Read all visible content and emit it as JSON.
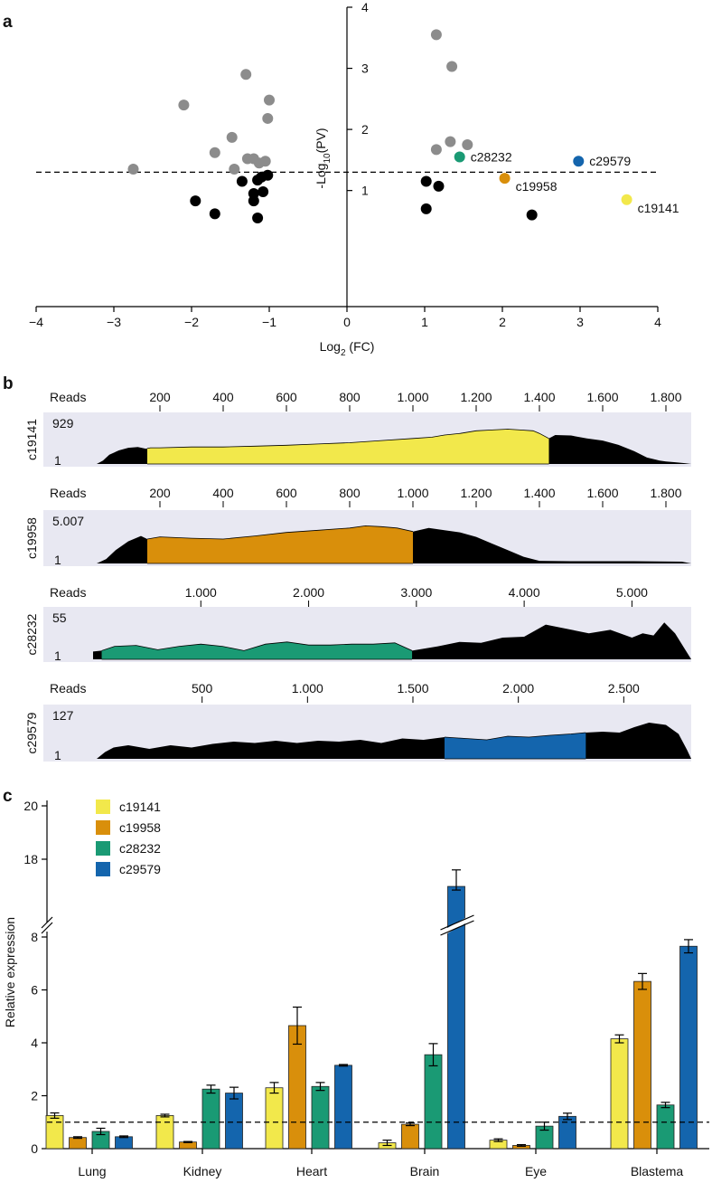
{
  "panels": {
    "a": "a",
    "b": "b",
    "c": "c"
  },
  "chart_data": [
    {
      "type": "scatter",
      "panel": "a",
      "xlabel_main": "Log",
      "xlabel_sub": "2",
      "xlabel_tail": " (FC)",
      "ylabel_main": "-Log",
      "ylabel_sub": "10",
      "ylabel_tail": "(PV)",
      "xlim": [
        -4,
        4
      ],
      "ylim": [
        -0.9,
        4
      ],
      "xticks": [
        -4,
        -3,
        -2,
        -1,
        0,
        1,
        2,
        3,
        4
      ],
      "xtick_labels": [
        "−4",
        "−3",
        "−2",
        "−1",
        "0",
        "1",
        "2",
        "3",
        "4"
      ],
      "yticks": [
        1,
        2,
        3,
        4
      ],
      "ytick_labels": [
        "1",
        "2",
        "3",
        "4"
      ],
      "threshold": 1.3,
      "colors": {
        "grey": "#8c8c8c",
        "black": "#000000",
        "c19141": "#f2e84b",
        "c19958": "#d98f0b",
        "c28232": "#1a9a74",
        "c29579": "#1465ad"
      },
      "grey_points": [
        [
          -2.75,
          1.35
        ],
        [
          -2.1,
          2.4
        ],
        [
          -1.7,
          1.62
        ],
        [
          -1.48,
          1.87
        ],
        [
          -1.3,
          2.9
        ],
        [
          -1.28,
          1.52
        ],
        [
          -1.2,
          1.52
        ],
        [
          -1.13,
          1.45
        ],
        [
          -1.05,
          1.48
        ],
        [
          -1.02,
          2.18
        ],
        [
          -1.0,
          2.48
        ],
        [
          -1.45,
          1.35
        ],
        [
          1.15,
          3.55
        ],
        [
          1.35,
          3.03
        ],
        [
          1.15,
          1.67
        ],
        [
          1.33,
          1.8
        ],
        [
          1.55,
          1.75
        ]
      ],
      "black_points": [
        [
          -1.95,
          0.83
        ],
        [
          -1.7,
          0.62
        ],
        [
          -1.35,
          1.15
        ],
        [
          -1.2,
          0.95
        ],
        [
          -1.2,
          0.83
        ],
        [
          -1.15,
          0.55
        ],
        [
          -1.15,
          1.17
        ],
        [
          -1.1,
          1.22
        ],
        [
          -1.08,
          0.98
        ],
        [
          -1.02,
          1.25
        ],
        [
          1.02,
          0.7
        ],
        [
          1.02,
          1.15
        ],
        [
          1.18,
          1.07
        ],
        [
          2.38,
          0.6
        ]
      ],
      "highlight_points": [
        {
          "name": "c28232",
          "x": 1.45,
          "y": 1.55,
          "color": "#1a9a74",
          "label": "c28232"
        },
        {
          "name": "c19958",
          "x": 2.03,
          "y": 1.2,
          "color": "#d98f0b",
          "label": "c19958"
        },
        {
          "name": "c29579",
          "x": 2.98,
          "y": 1.48,
          "color": "#1465ad",
          "label": "c29579"
        },
        {
          "name": "c19141",
          "x": 3.6,
          "y": 0.85,
          "color": "#f2e84b",
          "label": "c19141"
        }
      ]
    },
    {
      "type": "area",
      "panel": "b",
      "reads_label": "Reads",
      "tracks": [
        {
          "name": "c19141",
          "ymax_label": "929",
          "ymin_label": "1",
          "xmin": 0,
          "xmax": 1880,
          "ticks": [
            200,
            400,
            600,
            800,
            1000,
            1200,
            1400,
            1600,
            1800
          ],
          "tick_labels": [
            "200",
            "400",
            "600",
            "800",
            "1.000",
            "1.200",
            "1.400",
            "1.600",
            "1.800"
          ],
          "highlight": [
            160,
            1430
          ],
          "color": "#f2e84b",
          "profile_x": [
            0,
            20,
            40,
            70,
            100,
            130,
            155,
            170,
            200,
            300,
            400,
            500,
            600,
            700,
            800,
            900,
            1000,
            1060,
            1100,
            1150,
            1200,
            1250,
            1300,
            1340,
            1380,
            1400,
            1430,
            1450,
            1500,
            1550,
            1600,
            1650,
            1700,
            1740,
            1780,
            1800,
            1830,
            1860,
            1880
          ],
          "profile_y": [
            0,
            0.08,
            0.22,
            0.32,
            0.38,
            0.4,
            0.36,
            0.38,
            0.38,
            0.4,
            0.4,
            0.42,
            0.44,
            0.47,
            0.5,
            0.55,
            0.6,
            0.63,
            0.68,
            0.72,
            0.78,
            0.8,
            0.82,
            0.8,
            0.78,
            0.72,
            0.6,
            0.68,
            0.67,
            0.6,
            0.55,
            0.45,
            0.3,
            0.15,
            0.08,
            0.06,
            0.04,
            0.02,
            0
          ]
        },
        {
          "name": "c19958",
          "ymax_label": "5.007",
          "ymin_label": "1",
          "xmin": 0,
          "xmax": 1880,
          "ticks": [
            200,
            400,
            600,
            800,
            1000,
            1200,
            1400,
            1600,
            1800
          ],
          "tick_labels": [
            "200",
            "400",
            "600",
            "800",
            "1.000",
            "1.200",
            "1.400",
            "1.600",
            "1.800"
          ],
          "highlight": [
            160,
            1000
          ],
          "color": "#d98f0b",
          "profile_x": [
            0,
            30,
            60,
            100,
            140,
            160,
            200,
            300,
            400,
            500,
            600,
            700,
            800,
            850,
            900,
            950,
            1000,
            1050,
            1100,
            1150,
            1200,
            1250,
            1300,
            1350,
            1400,
            1500,
            1700,
            1850,
            1880
          ],
          "profile_y": [
            0,
            0.1,
            0.3,
            0.5,
            0.62,
            0.55,
            0.6,
            0.57,
            0.55,
            0.62,
            0.7,
            0.75,
            0.8,
            0.85,
            0.83,
            0.8,
            0.72,
            0.8,
            0.75,
            0.7,
            0.6,
            0.45,
            0.3,
            0.15,
            0.06,
            0.05,
            0.05,
            0.04,
            0
          ]
        },
        {
          "name": "c28232",
          "ymax_label": "55",
          "ymin_label": "1",
          "xmin": 0,
          "xmax": 5550,
          "ticks": [
            1000,
            2000,
            3000,
            4000,
            5000
          ],
          "tick_labels": [
            "1.000",
            "2.000",
            "3.000",
            "4.000",
            "5.000"
          ],
          "highlight": [
            80,
            2960
          ],
          "color": "#1a9a74",
          "profile_x": [
            0,
            80,
            200,
            400,
            600,
            800,
            1000,
            1200,
            1400,
            1600,
            1800,
            2000,
            2200,
            2400,
            2600,
            2800,
            2960,
            3200,
            3400,
            3600,
            3800,
            4000,
            4200,
            4400,
            4600,
            4800,
            5000,
            5100,
            5200,
            5300,
            5400,
            5550
          ],
          "profile_y": [
            0.18,
            0.2,
            0.3,
            0.32,
            0.22,
            0.3,
            0.35,
            0.3,
            0.2,
            0.35,
            0.4,
            0.33,
            0.33,
            0.35,
            0.35,
            0.38,
            0.2,
            0.3,
            0.4,
            0.38,
            0.5,
            0.52,
            0.8,
            0.7,
            0.6,
            0.68,
            0.5,
            0.6,
            0.55,
            0.85,
            0.6,
            0
          ]
        },
        {
          "name": "c29579",
          "ymax_label": "127",
          "ymin_label": "1",
          "xmin": 0,
          "xmax": 2820,
          "ticks": [
            500,
            1000,
            1500,
            2000,
            2500
          ],
          "tick_labels": [
            "500",
            "1.000",
            "1.500",
            "2.000",
            "2.500"
          ],
          "highlight": [
            1650,
            2320
          ],
          "color": "#1465ad",
          "profile_x": [
            0,
            40,
            80,
            150,
            250,
            350,
            450,
            550,
            650,
            750,
            850,
            950,
            1050,
            1150,
            1250,
            1350,
            1450,
            1550,
            1650,
            1750,
            1850,
            1950,
            2050,
            2150,
            2250,
            2320,
            2400,
            2480,
            2550,
            2620,
            2700,
            2760,
            2800,
            2820
          ],
          "profile_y": [
            0,
            0.15,
            0.25,
            0.3,
            0.22,
            0.3,
            0.25,
            0.33,
            0.38,
            0.35,
            0.4,
            0.35,
            0.4,
            0.38,
            0.42,
            0.35,
            0.45,
            0.42,
            0.48,
            0.45,
            0.42,
            0.5,
            0.48,
            0.52,
            0.55,
            0.58,
            0.6,
            0.58,
            0.7,
            0.8,
            0.75,
            0.55,
            0.2,
            0
          ]
        }
      ]
    },
    {
      "type": "bar",
      "panel": "c",
      "ylabel": "Relative expression",
      "categories": [
        "Lung",
        "Kidney",
        "Heart",
        "Brain",
        "Eye",
        "Blastema"
      ],
      "yticks_lower": [
        0,
        2,
        4,
        6,
        8
      ],
      "yticks_lower_labels": [
        "0",
        "2",
        "4",
        "6",
        "8"
      ],
      "yticks_upper": [
        18,
        20
      ],
      "yticks_upper_labels": [
        "18",
        "20"
      ],
      "axis_break": [
        8.2,
        17.0
      ],
      "ylim": [
        0,
        20
      ],
      "threshold": 1,
      "series": [
        {
          "name": "c19141",
          "color": "#f2e84b",
          "values": [
            1.25,
            1.25,
            2.3,
            0.22,
            0.32,
            4.15
          ],
          "errors": [
            0.1,
            0.05,
            0.2,
            0.1,
            0.05,
            0.15
          ]
        },
        {
          "name": "c19958",
          "color": "#d98f0b",
          "values": [
            0.42,
            0.25,
            4.65,
            0.92,
            0.12,
            6.32
          ],
          "errors": [
            0.03,
            0.02,
            0.7,
            0.05,
            0.03,
            0.3
          ]
        },
        {
          "name": "c28232",
          "color": "#1a9a74",
          "values": [
            0.65,
            2.25,
            2.35,
            3.55,
            0.85,
            1.65
          ],
          "errors": [
            0.12,
            0.15,
            0.15,
            0.42,
            0.15,
            0.1
          ]
        },
        {
          "name": "c29579",
          "color": "#1465ad",
          "values": [
            0.45,
            2.1,
            3.15,
            16.9,
            1.22,
            7.65
          ],
          "errors": [
            0.03,
            0.22,
            0.03,
            0.7,
            0.12,
            0.25
          ]
        }
      ],
      "legend": [
        "c19141",
        "c19958",
        "c28232",
        "c29579"
      ]
    }
  ]
}
